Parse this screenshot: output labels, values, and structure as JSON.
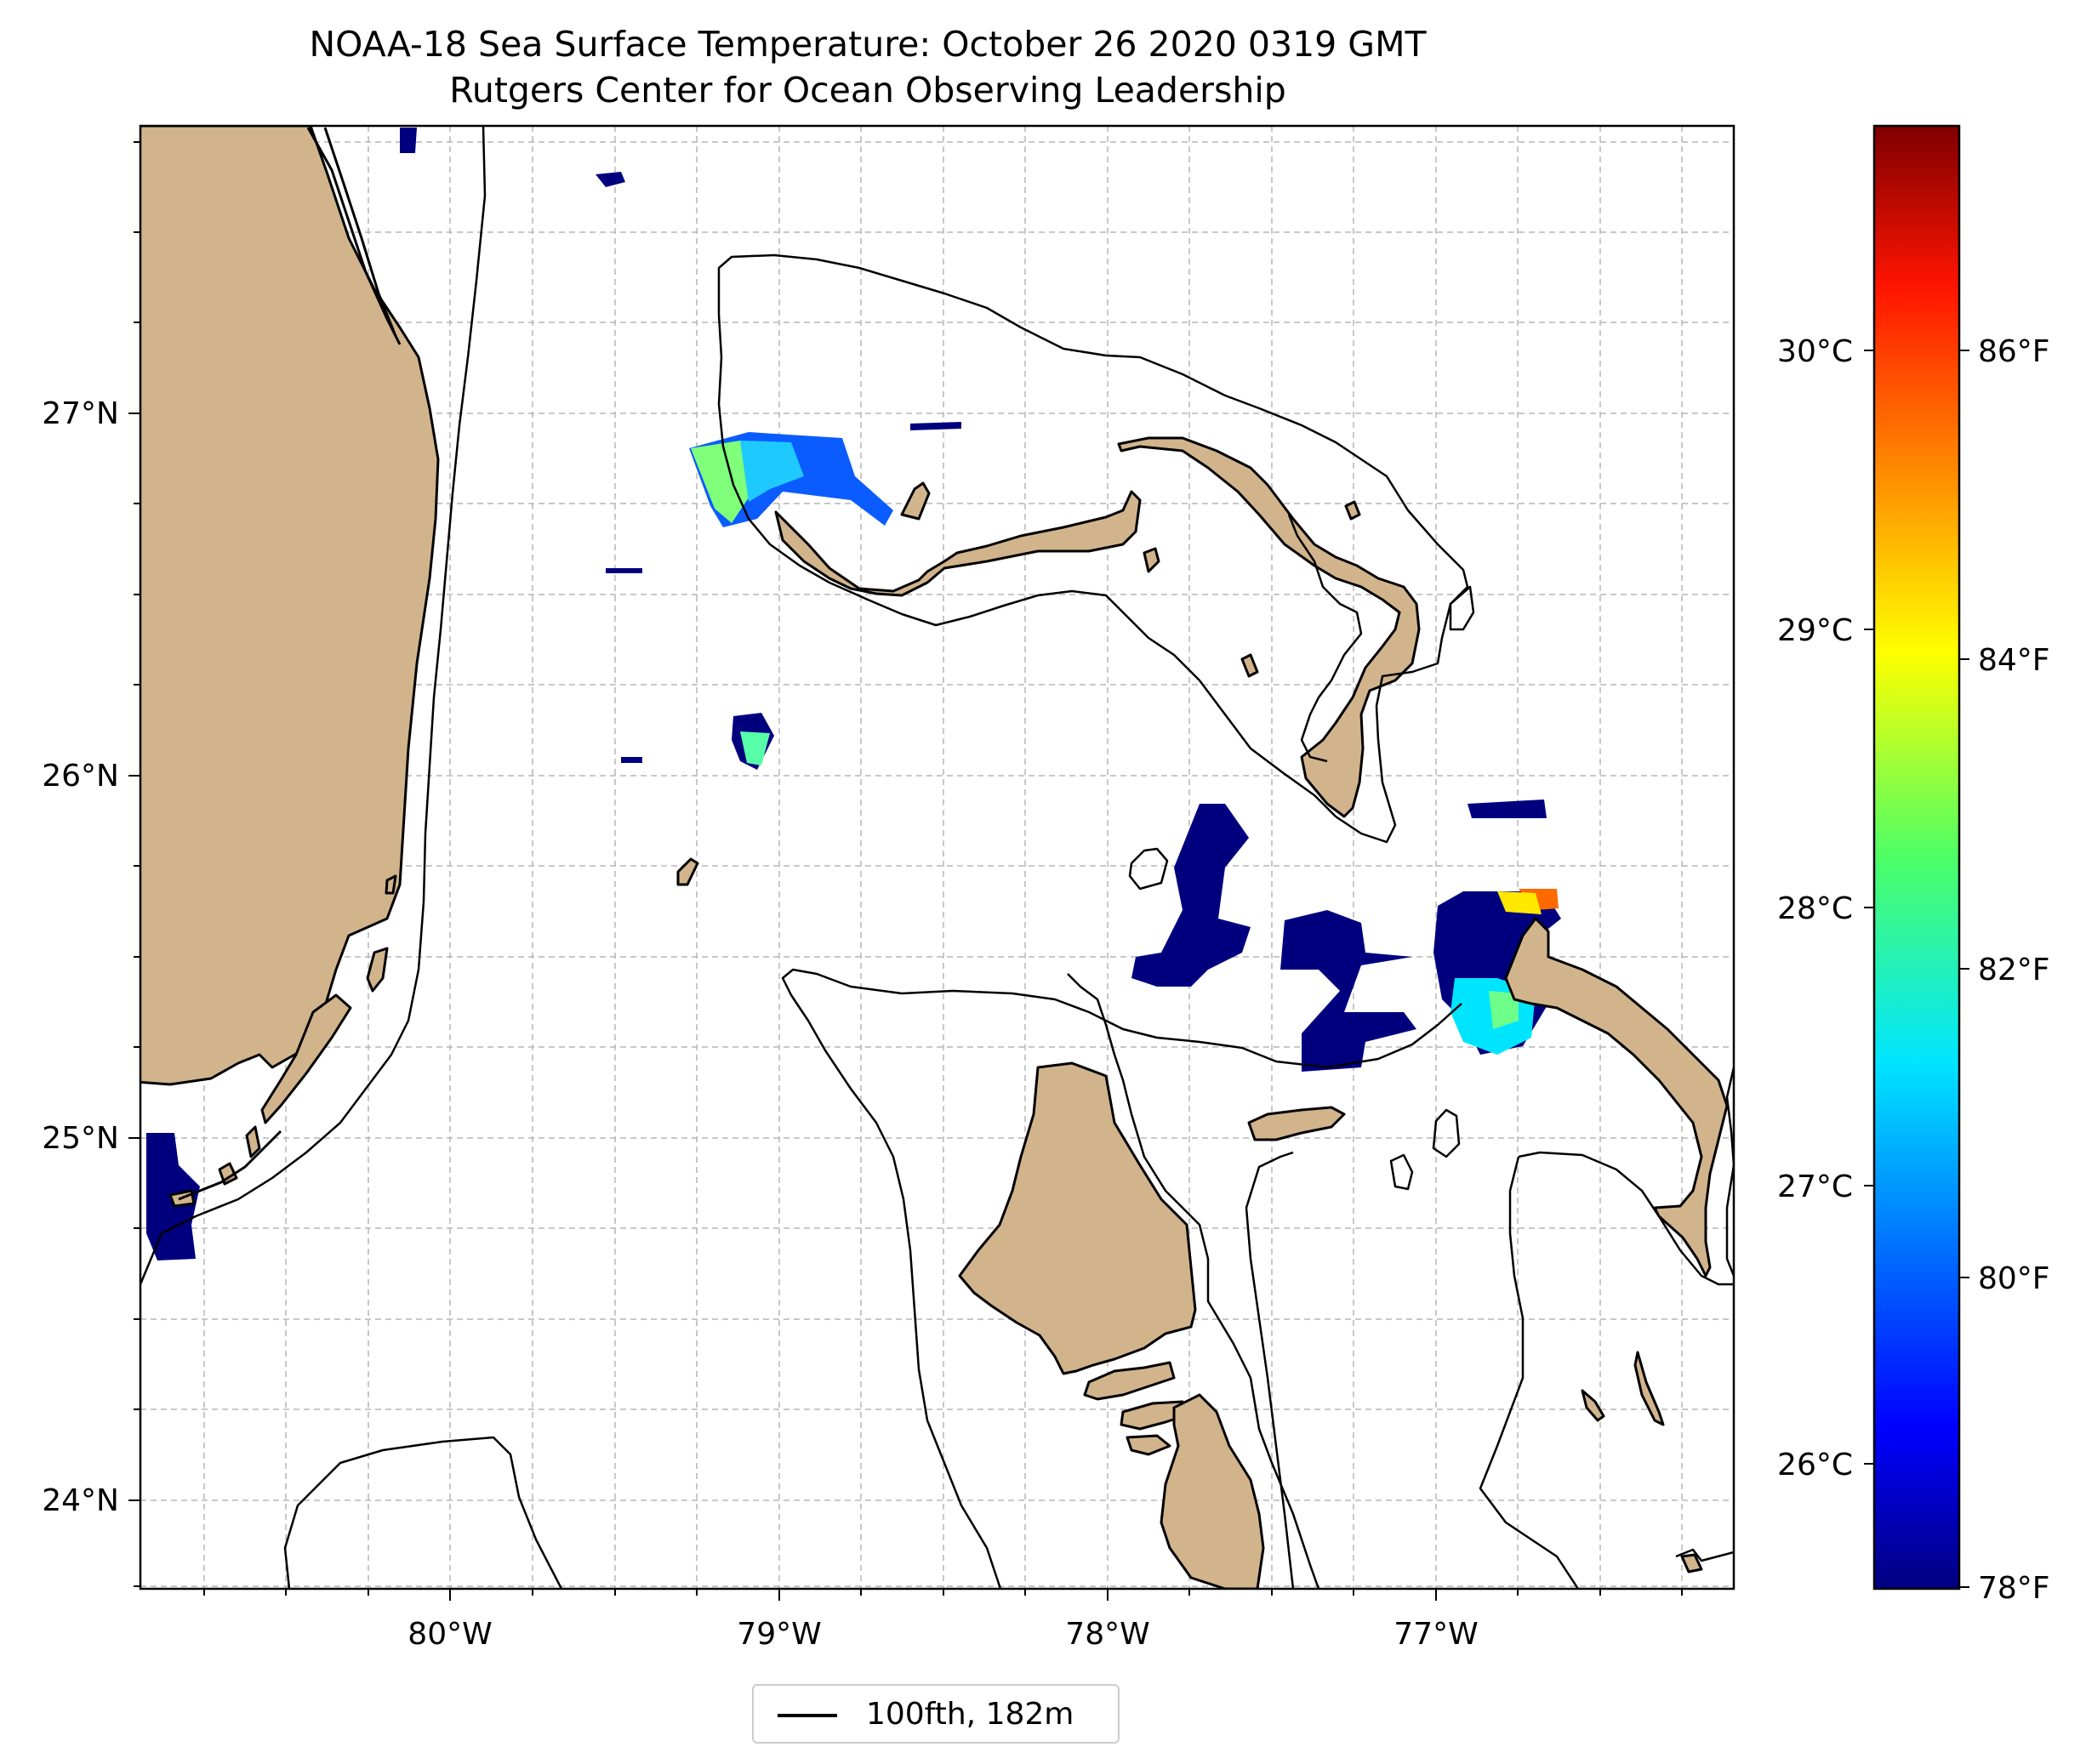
{
  "title": {
    "line1": "NOAA-18 Sea Surface Temperature: October 26 2020 0319 GMT",
    "line2": "Rutgers Center for Ocean Observing Leadership"
  },
  "map": {
    "lon_ticks": [
      "80°W",
      "79°W",
      "78°W",
      "77°W"
    ],
    "lat_ticks": [
      "27°N",
      "26°N",
      "25°N",
      "24°N"
    ],
    "land_color": "#d2b48c",
    "grid_color": "#b5b5b5"
  },
  "colorbar": {
    "celsius_ticks": [
      "30°C",
      "29°C",
      "28°C",
      "27°C",
      "26°C"
    ],
    "fahrenheit_ticks": [
      "86°F",
      "84°F",
      "82°F",
      "80°F",
      "78°F"
    ],
    "colormap": "jet"
  },
  "legend": {
    "label": "100fth, 182m"
  }
}
